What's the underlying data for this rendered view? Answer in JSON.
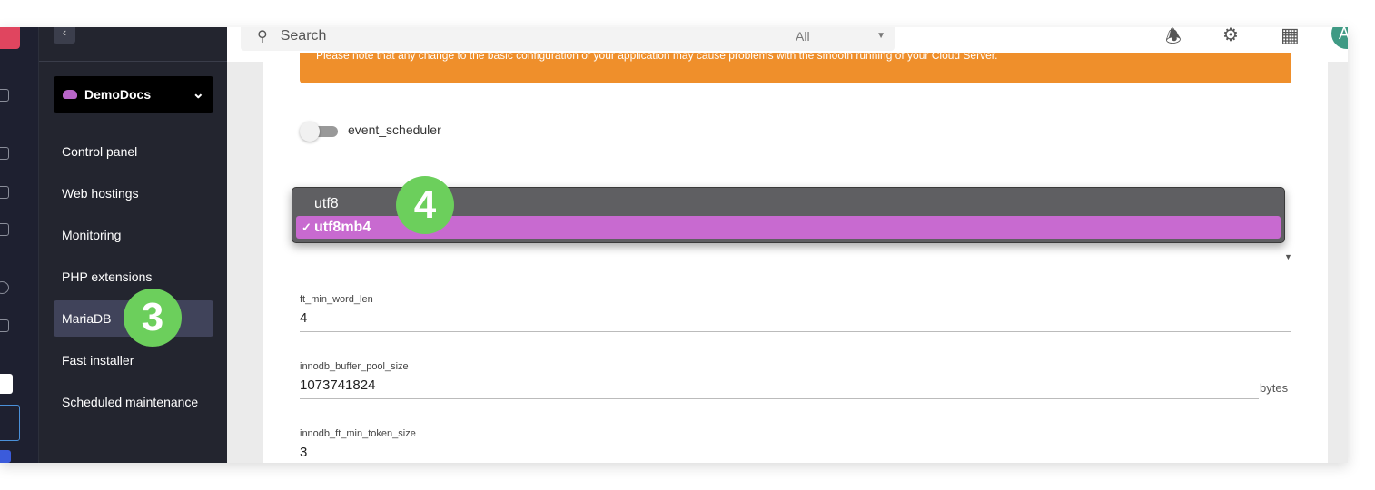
{
  "sidebar": {
    "project": "DemoDocs",
    "items": [
      {
        "label": "Control panel"
      },
      {
        "label": "Web hostings"
      },
      {
        "label": "Monitoring"
      },
      {
        "label": "PHP extensions"
      },
      {
        "label": "MariaDB",
        "active": true
      },
      {
        "label": "Fast installer"
      },
      {
        "label": "Scheduled maintenance"
      }
    ]
  },
  "topbar": {
    "search_placeholder": "Search",
    "filter": "All",
    "avatar": "A",
    "icons": [
      "bell-icon",
      "gear-icon",
      "apps-grid-icon"
    ]
  },
  "main": {
    "warning": "Please note that any change to the basic configuration of your application may cause problems with the smooth running of your Cloud Server.",
    "toggle": {
      "label": "event_scheduler",
      "on": false
    },
    "charset_dropdown": {
      "options": [
        "utf8",
        "utf8mb4"
      ],
      "selected": "utf8mb4"
    },
    "fields": [
      {
        "label": "ft_min_word_len",
        "value": "4"
      },
      {
        "label": "innodb_buffer_pool_size",
        "value": "1073741824",
        "unit": "bytes"
      },
      {
        "label": "innodb_ft_min_token_size",
        "value": "3"
      }
    ]
  },
  "annotations": {
    "step3": "3",
    "step4": "4"
  },
  "colors": {
    "warning": "#ef8f2b",
    "selected_option": "#c86ad0",
    "badge": "#6ccf5c",
    "sidebar": "#23252f"
  }
}
